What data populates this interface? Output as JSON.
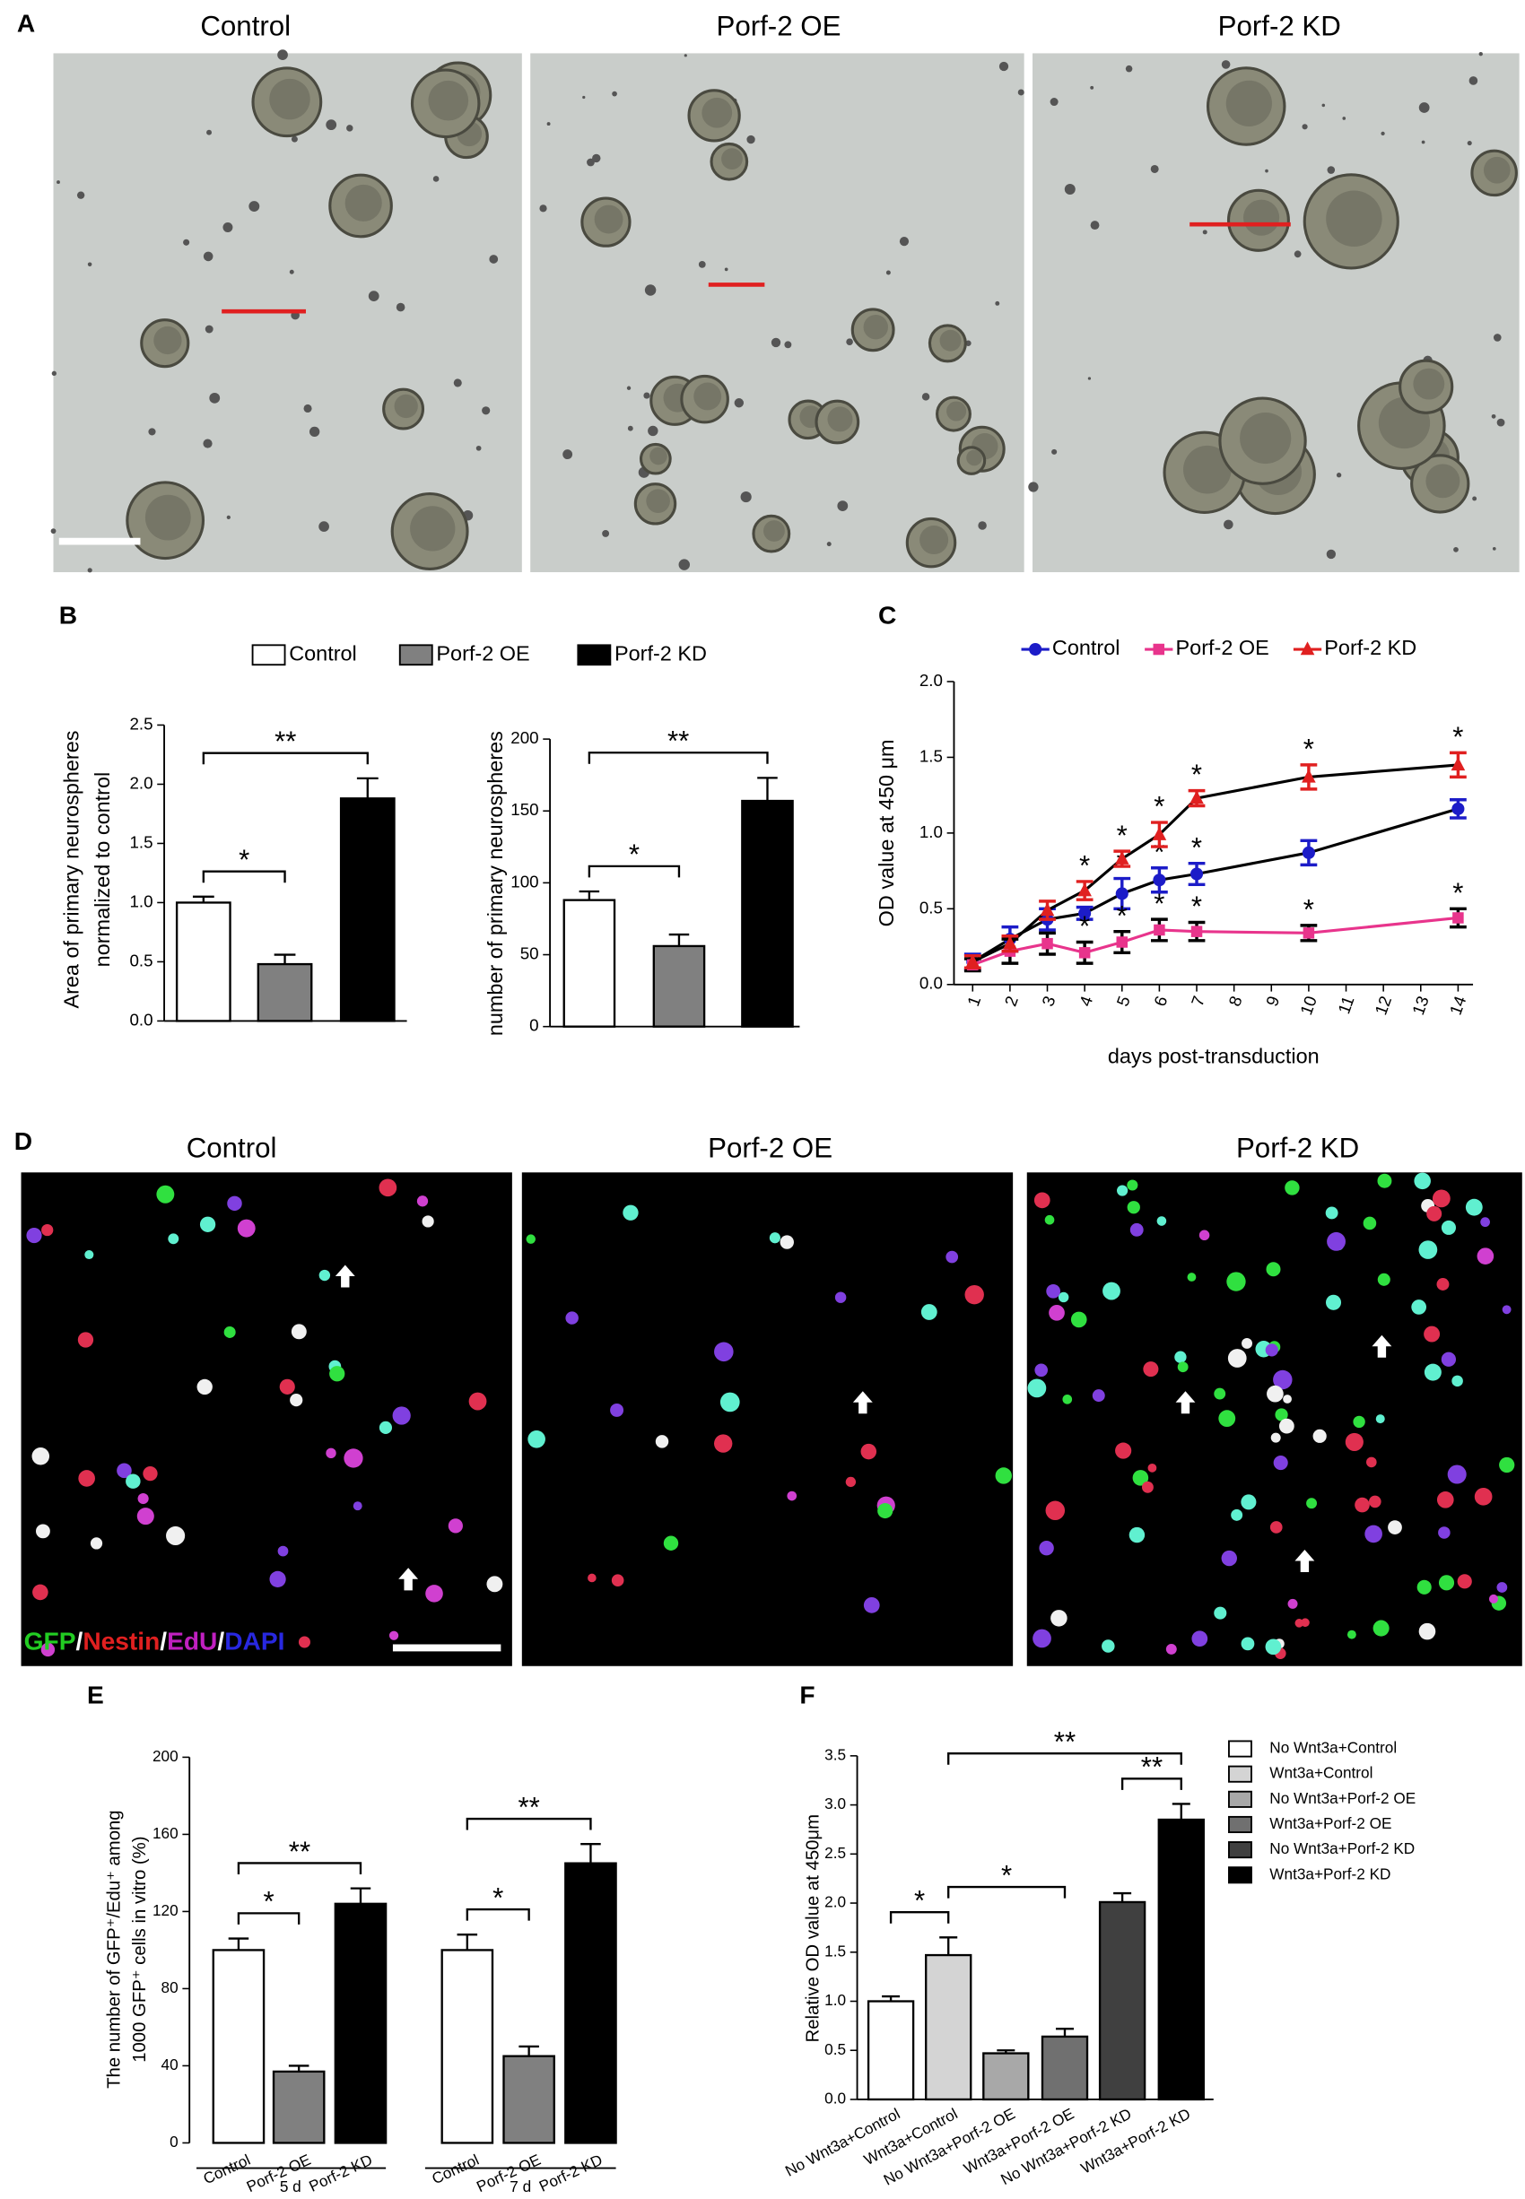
{
  "micrographs": [
    {
      "panel_label": "A",
      "titles": [
        "Control",
        "Porf-2 OE",
        "Porf-2 KD"
      ]
    },
    {
      "panel_label": "D",
      "titles": [
        "Control",
        "Porf-2 OE",
        "Porf-2 KD"
      ],
      "stain_labels": [
        {
          "text": "GFP",
          "color": "#22cc22"
        },
        {
          "text": "Nestin",
          "color": "#e02020"
        },
        {
          "text": "EdU",
          "color": "#c020c0"
        },
        {
          "text": "DAPI",
          "color": "#2828e0"
        }
      ],
      "separator": "/"
    }
  ],
  "chart_data": [
    {
      "type": "bar",
      "panel_label": "B",
      "categories": [
        "Control",
        "Porf-2  OE",
        "Porf-2 KD"
      ],
      "legend": true,
      "colors": [
        "#ffffff",
        "#808080",
        "#000000"
      ],
      "values": [
        1.0,
        0.48,
        1.88
      ],
      "errors": [
        0.05,
        0.08,
        0.17
      ],
      "ylim": [
        0,
        2.5
      ],
      "yticks": [
        {
          "value": 0,
          "label": "0.0"
        },
        0.5,
        {
          "value": 1,
          "label": "1.0"
        },
        1.5,
        {
          "value": 2,
          "label": "2.0"
        },
        2.5
      ],
      "ylabel": [
        "Area of primary neurospheres",
        "normalized to control"
      ],
      "significance": [
        {
          "between": [
            0,
            1
          ],
          "label": "*"
        },
        {
          "between": [
            0,
            2
          ],
          "label": "**"
        }
      ]
    },
    {
      "type": "bar",
      "categories": [
        null,
        null,
        null
      ],
      "colors": [
        "#ffffff",
        "#808080",
        "#000000"
      ],
      "values": [
        88,
        56,
        157
      ],
      "errors": [
        6,
        8,
        16
      ],
      "ylim": [
        0,
        200
      ],
      "yticks": [
        0,
        50,
        100,
        150,
        200
      ],
      "ylabel": [
        "number of primary neurospheres"
      ],
      "significance": [
        {
          "between": [
            0,
            1
          ],
          "label": "*"
        },
        {
          "between": [
            0,
            2
          ],
          "label": "**"
        }
      ]
    },
    {
      "type": "line",
      "panel_label": "C",
      "x": [
        1,
        2,
        3,
        4,
        5,
        6,
        7,
        10,
        14
      ],
      "xlim": [
        0.5,
        14.4
      ],
      "xticks": [
        1,
        2,
        3,
        4,
        5,
        6,
        7,
        8,
        9,
        10,
        11,
        12,
        13,
        14
      ],
      "ylim": [
        0,
        2
      ],
      "yticks": [
        {
          "value": 0,
          "label": "0.0"
        },
        0.5,
        {
          "value": 1,
          "label": "1.0"
        },
        1.5,
        {
          "value": 2,
          "label": "2.0"
        }
      ],
      "xlabel": "days post-transduction",
      "ylabel": "OD value at 450 μm",
      "series": [
        {
          "name": "Control",
          "color": "#1c1cc8",
          "line_color": "#000000",
          "marker": "circle",
          "values": [
            0.15,
            0.3,
            0.43,
            0.47,
            0.6,
            0.69,
            0.73,
            0.87,
            1.16
          ],
          "errors": [
            0.05,
            0.08,
            0.07,
            0.04,
            0.1,
            0.08,
            0.07,
            0.08,
            0.06
          ],
          "significant": [
            null,
            null,
            null,
            null,
            "*",
            "*",
            "*",
            null,
            null
          ]
        },
        {
          "name": "Porf-2  OE",
          "color": "#e8348c",
          "line_color": "#e8348c",
          "marker": "square",
          "values": [
            0.13,
            0.22,
            0.27,
            0.21,
            0.28,
            0.36,
            0.35,
            0.34,
            0.44
          ],
          "errors": [
            0.04,
            0.08,
            0.07,
            0.07,
            0.07,
            0.07,
            0.06,
            0.05,
            0.06
          ],
          "significant": [
            null,
            null,
            null,
            "*",
            "*",
            "*",
            "*",
            "*",
            "*"
          ]
        },
        {
          "name": "Porf-2 KD",
          "color": "#e02020",
          "line_color": "#000000",
          "marker": "triangle",
          "values": [
            0.15,
            0.27,
            0.49,
            0.62,
            0.83,
            0.99,
            1.23,
            1.37,
            1.45
          ],
          "errors": [
            0.04,
            0.05,
            0.06,
            0.06,
            0.05,
            0.08,
            0.05,
            0.08,
            0.08
          ],
          "significant": [
            null,
            null,
            null,
            "*",
            "*",
            "*",
            "*",
            "*",
            "*"
          ]
        }
      ]
    },
    {
      "type": "grouped_bar",
      "panel_label": "E",
      "categories": [
        "Control",
        "Porf-2 OE",
        "Porf-2 KD"
      ],
      "colors": [
        "#ffffff",
        "#808080",
        "#000000"
      ],
      "groups": [
        {
          "name": "5 d",
          "values": [
            100,
            37,
            124
          ],
          "errors": [
            6,
            3,
            8
          ],
          "significance": [
            {
              "between": [
                0,
                1
              ],
              "label": "*"
            },
            {
              "between": [
                0,
                2
              ],
              "label": "**"
            }
          ]
        },
        {
          "name": "7 d",
          "values": [
            100,
            45,
            145
          ],
          "errors": [
            8,
            5,
            10
          ],
          "significance": [
            {
              "between": [
                0,
                1
              ],
              "label": "*"
            },
            {
              "between": [
                0,
                2
              ],
              "label": "**"
            }
          ]
        }
      ],
      "ylim": [
        0,
        200
      ],
      "yticks": [
        0,
        40,
        80,
        120,
        160,
        200
      ],
      "ylabel": [
        "The number of GFP⁺/Edu⁺ among",
        "1000 GFP⁺ cells in vitro (%)"
      ]
    },
    {
      "type": "bar",
      "panel_label": "F",
      "legend": true,
      "rotated_labels": true,
      "categories": [
        "No Wnt3a+Control",
        "Wnt3a+Control",
        "No Wnt3a+Porf-2 OE",
        "Wnt3a+Porf-2 OE",
        "No Wnt3a+Porf-2 KD",
        "Wnt3a+Porf-2 KD"
      ],
      "colors": [
        "#ffffff",
        "#d4d4d4",
        "#a8a8a8",
        "#707070",
        "#404040",
        "#000000"
      ],
      "values": [
        1.0,
        1.47,
        0.47,
        0.64,
        2.01,
        2.85
      ],
      "errors": [
        0.05,
        0.18,
        0.03,
        0.08,
        0.09,
        0.16
      ],
      "ylim": [
        0,
        3.5
      ],
      "yticks": [
        {
          "value": 0,
          "label": "0.0"
        },
        0.5,
        {
          "value": 1,
          "label": "1.0"
        },
        1.5,
        {
          "value": 2,
          "label": "2.0"
        },
        2.5,
        {
          "value": 3,
          "label": "3.0"
        },
        3.5
      ],
      "ylabel": [
        "Relative OD value at 450μm"
      ],
      "significance": [
        {
          "between": [
            0,
            1
          ],
          "label": "*"
        },
        {
          "between": [
            1,
            3
          ],
          "label": "*"
        },
        {
          "between": [
            4,
            5
          ],
          "label": "**"
        },
        {
          "between": [
            1,
            5
          ],
          "label": "**"
        }
      ]
    }
  ]
}
